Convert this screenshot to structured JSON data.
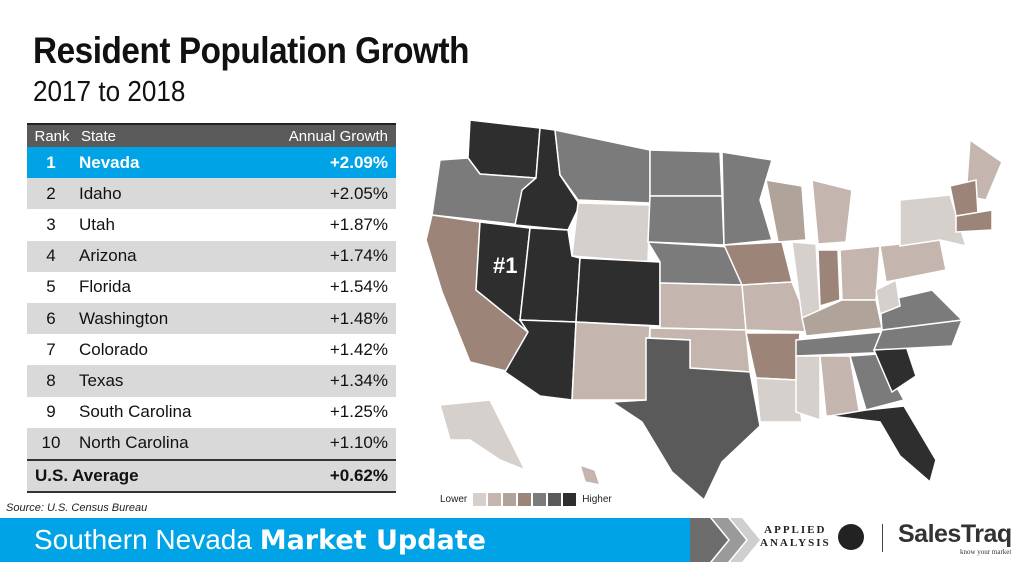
{
  "header": {
    "title": "Resident Population Growth",
    "subtitle": "2017 to 2018"
  },
  "table": {
    "columns": [
      "Rank",
      "State",
      "Annual Growth"
    ],
    "rows": [
      {
        "rank": "1",
        "state": "Nevada",
        "growth": "+2.09%"
      },
      {
        "rank": "2",
        "state": "Idaho",
        "growth": "+2.05%"
      },
      {
        "rank": "3",
        "state": "Utah",
        "growth": "+1.87%"
      },
      {
        "rank": "4",
        "state": "Arizona",
        "growth": "+1.74%"
      },
      {
        "rank": "5",
        "state": "Florida",
        "growth": "+1.54%"
      },
      {
        "rank": "6",
        "state": "Washington",
        "growth": "+1.48%"
      },
      {
        "rank": "7",
        "state": "Colorado",
        "growth": "+1.42%"
      },
      {
        "rank": "8",
        "state": "Texas",
        "growth": "+1.34%"
      },
      {
        "rank": "9",
        "state": "South Carolina",
        "growth": "+1.25%"
      },
      {
        "rank": "10",
        "state": "North Carolina",
        "growth": "+1.10%"
      }
    ],
    "average": {
      "label": "U.S. Average",
      "growth": "+0.62%"
    }
  },
  "source": "Source: U.S. Census Bureau",
  "map": {
    "label": "#1",
    "legend": {
      "low": "Lower",
      "high": "Higher",
      "colors": [
        "#d6d0cc",
        "#c4b6ae",
        "#b0a39a",
        "#9c8578",
        "#7b7b7b",
        "#5a5a5a",
        "#2e2e2e"
      ]
    },
    "state_shades": {
      "WA": 6,
      "OR": 4,
      "ID": 6,
      "MT": 4,
      "WY": 0,
      "CA": 3,
      "NV": 6,
      "UT": 6,
      "AZ": 6,
      "CO": 6,
      "NM": 1,
      "ND": 4,
      "SD": 4,
      "NE": 4,
      "KS": 1,
      "OK": 1,
      "TX": 5,
      "MN": 4,
      "IA": 3,
      "MO": 1,
      "AR": 3,
      "LA": 0,
      "WI": 2,
      "IL": 0,
      "MI": 1,
      "IN": 3,
      "OH": 1,
      "KY": 2,
      "TN": 4,
      "MS": 0,
      "AL": 1,
      "GA": 4,
      "FL": 6,
      "SC": 6,
      "NC": 4,
      "VA": 4,
      "WV": 0,
      "PA": 1,
      "NY": 0,
      "ME": 1,
      "VTNH": 3,
      "MA": 3,
      "AK": 0,
      "HI": 1
    }
  },
  "footer": {
    "title_regular": "Southern Nevada ",
    "title_bold": "Market Update",
    "logo1_line1": "APPLIED",
    "logo1_line2": "ANALYSIS",
    "logo2": "SalesTraq",
    "logo2_tagline": "know your market"
  },
  "colors": {
    "accent": "#00a3e6",
    "header_row": "#5a5a5a",
    "alt_row": "#d9d9d9"
  }
}
